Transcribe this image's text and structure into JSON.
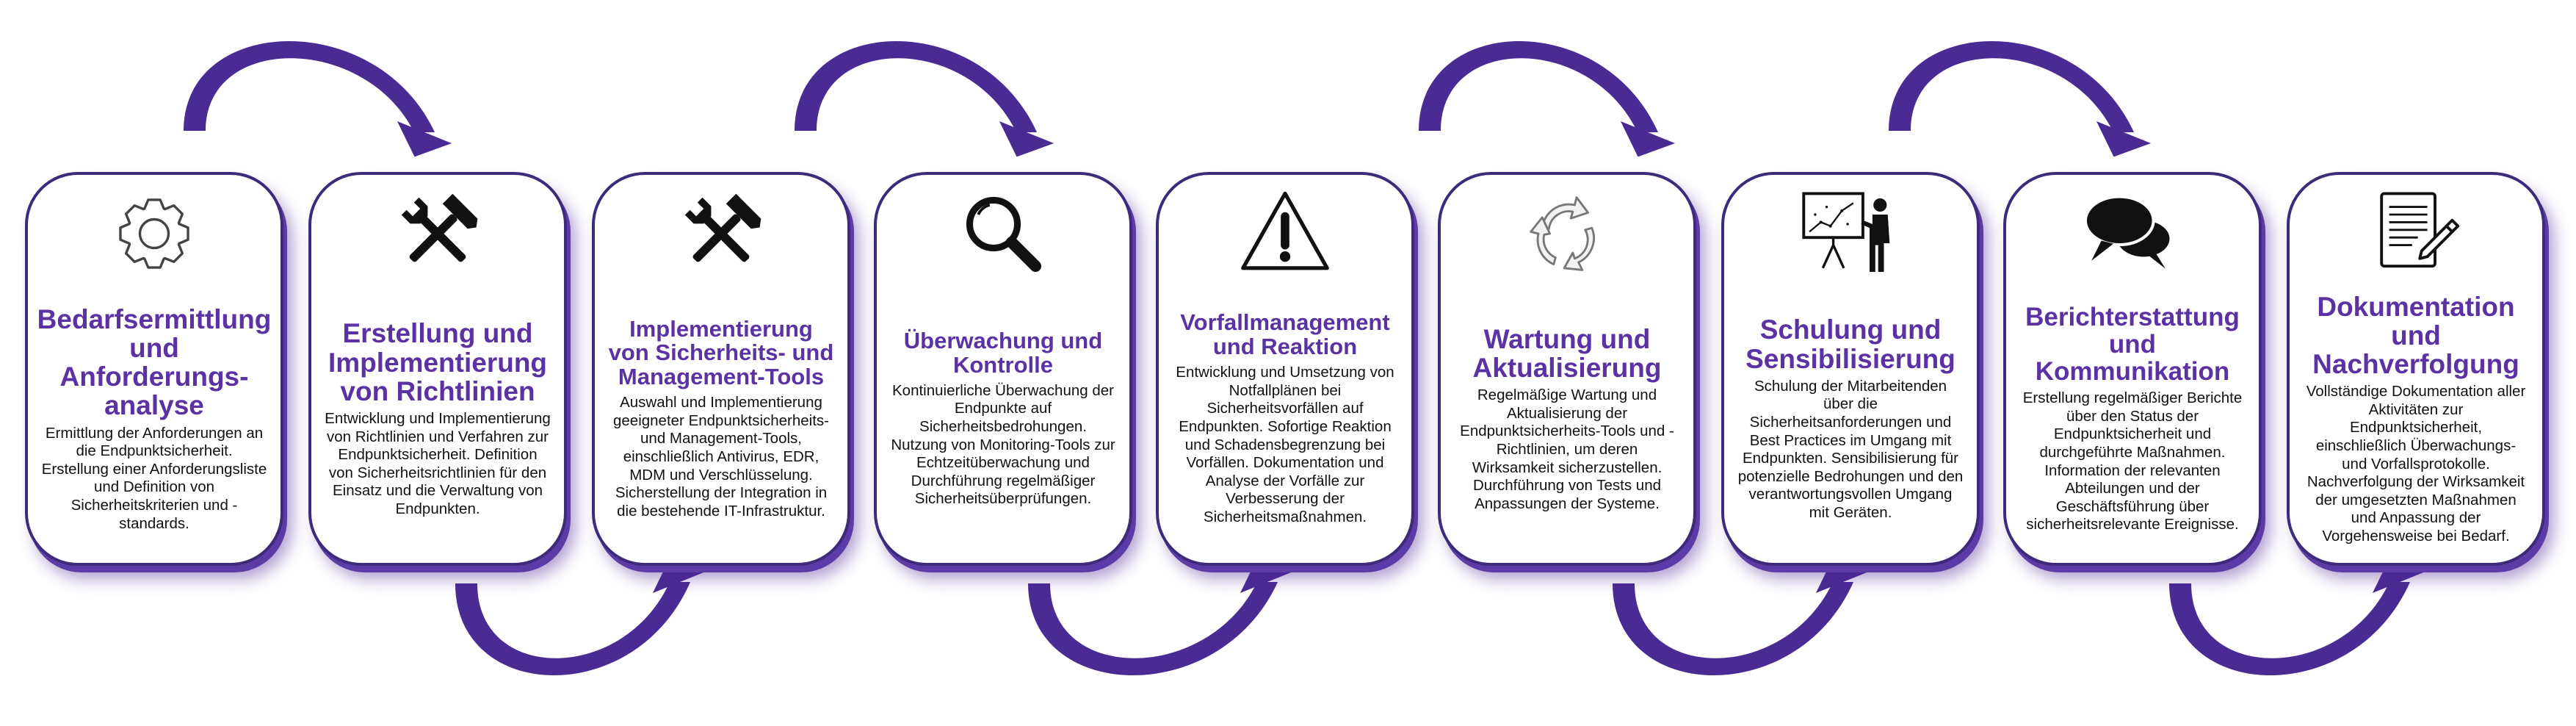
{
  "colors": {
    "accent": "#5a32a3",
    "arrow": "#4a2a93",
    "border": "#3d2a7a",
    "text": "#111111"
  },
  "steps": [
    {
      "icon": "gear-icon",
      "title": "Bedarfsermittlung und Anforderungs-analyse",
      "text": "Ermittlung der Anforderungen an die Endpunktsicherheit. Erstellung einer Anforderungsliste und Definition von Sicherheitskriterien und -standards."
    },
    {
      "icon": "hammer-wrench-icon",
      "title": "Erstellung und Implementierung von Richtlinien",
      "text": "Entwicklung und Implementierung von Richtlinien und Verfahren zur Endpunktsicherheit. Definition von Sicherheitsrichtlinien für den Einsatz und die Verwaltung von Endpunkten."
    },
    {
      "icon": "hammer-wrench-icon",
      "title": "Implementierung von Sicherheits- und Management-Tools",
      "text": "Auswahl und Implementierung geeigneter Endpunktsicherheits- und Management-Tools, einschließlich Antivirus, EDR, MDM und Verschlüsselung. Sicherstellung der Integration in die bestehende IT-Infrastruktur."
    },
    {
      "icon": "magnifier-icon",
      "title": "Überwachung und Kontrolle",
      "text": "Kontinuierliche Überwachung der Endpunkte auf Sicherheitsbedrohungen. Nutzung von Monitoring-Tools zur Echtzeitüberwachung und Durchführung regelmäßiger Sicherheitsüberprüfungen."
    },
    {
      "icon": "warning-icon",
      "title": "Vorfallmanagement und Reaktion",
      "text": "Entwicklung und Umsetzung von Notfallplänen bei Sicherheitsvorfällen auf Endpunkten. Sofortige Reaktion und Schadensbegrenzung bei Vorfällen. Dokumentation und Analyse der Vorfälle zur Verbesserung der Sicherheitsmaßnahmen."
    },
    {
      "icon": "cycle-icon",
      "title": "Wartung und Aktualisierung",
      "text": "Regelmäßige Wartung und Aktualisierung der Endpunktsicherheits-Tools und -Richtlinien, um deren Wirksamkeit sicherzustellen. Durchführung von Tests und Anpassungen der Systeme."
    },
    {
      "icon": "presentation-icon",
      "title": "Schulung und Sensibilisierung",
      "text": "Schulung der Mitarbeitenden über die Sicherheitsanforderungen und Best Practices im Umgang mit Endpunkten. Sensibilisierung für potenzielle Bedrohungen und den verantwortungsvollen Umgang mit Geräten."
    },
    {
      "icon": "speech-bubbles-icon",
      "title": "Berichterstattung und Kommunikation",
      "text": "Erstellung regelmäßiger Berichte über den Status der Endpunktsicherheit und durchgeführte Maßnahmen. Information der relevanten Abteilungen und der Geschäftsführung über sicherheitsrelevante Ereignisse."
    },
    {
      "icon": "document-pen-icon",
      "title": "Dokumentation und Nachverfolgung",
      "text": "Vollständige Dokumentation aller Aktivitäten zur Endpunktsicherheit, einschließlich Überwachungs- und Vorfallsprotokolle. Nachverfolgung der Wirksamkeit der umgesetzten Maßnahmen und Anpassung der Vorgehensweise bei Bedarf."
    }
  ]
}
